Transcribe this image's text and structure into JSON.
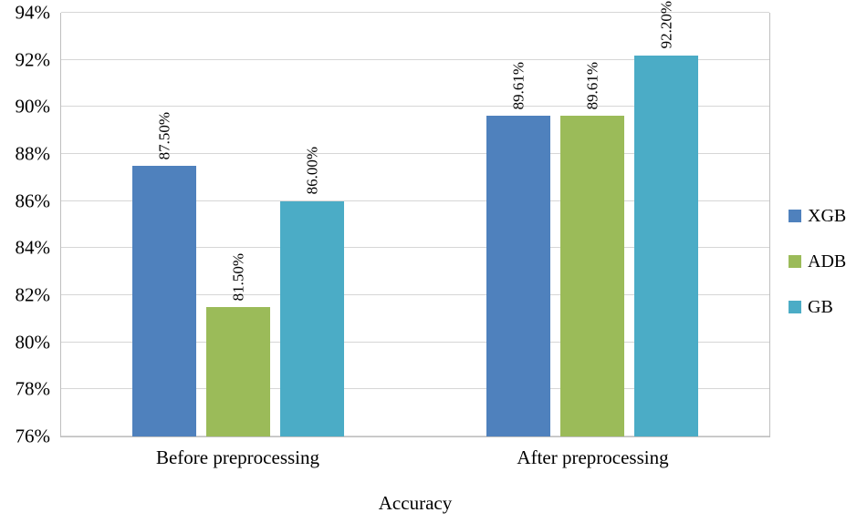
{
  "chart_data": {
    "type": "bar",
    "title": "",
    "xlabel": "Accuracy",
    "ylabel": "",
    "ylim": [
      76,
      94
    ],
    "ytick_step": 2,
    "grid": true,
    "legend_position": "right",
    "yticks": [
      {
        "value": 76,
        "label": "76%"
      },
      {
        "value": 78,
        "label": "78%"
      },
      {
        "value": 80,
        "label": "80%"
      },
      {
        "value": 82,
        "label": "82%"
      },
      {
        "value": 84,
        "label": "84%"
      },
      {
        "value": 86,
        "label": "86%"
      },
      {
        "value": 88,
        "label": "88%"
      },
      {
        "value": 90,
        "label": "90%"
      },
      {
        "value": 92,
        "label": "92%"
      },
      {
        "value": 94,
        "label": "94%"
      }
    ],
    "categories": [
      "Before preprocessing",
      "After preprocessing"
    ],
    "series": [
      {
        "name": "XGB",
        "color": "#4F81BD",
        "values": [
          87.5,
          89.61
        ],
        "labels": [
          "87.50%",
          "89.61%"
        ]
      },
      {
        "name": "ADB",
        "color": "#9BBB59",
        "values": [
          81.5,
          89.61
        ],
        "labels": [
          "81.50%",
          "89.61%"
        ]
      },
      {
        "name": "GB",
        "color": "#4BACC6",
        "values": [
          86.0,
          92.2
        ],
        "labels": [
          "86.00%",
          "92.20%"
        ]
      }
    ]
  }
}
